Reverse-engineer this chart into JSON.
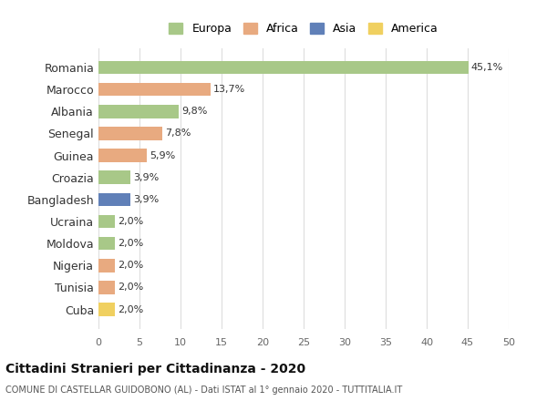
{
  "countries": [
    "Romania",
    "Marocco",
    "Albania",
    "Senegal",
    "Guinea",
    "Croazia",
    "Bangladesh",
    "Ucraina",
    "Moldova",
    "Nigeria",
    "Tunisia",
    "Cuba"
  ],
  "values": [
    45.1,
    13.7,
    9.8,
    7.8,
    5.9,
    3.9,
    3.9,
    2.0,
    2.0,
    2.0,
    2.0,
    2.0
  ],
  "labels": [
    "45,1%",
    "13,7%",
    "9,8%",
    "7,8%",
    "5,9%",
    "3,9%",
    "3,9%",
    "2,0%",
    "2,0%",
    "2,0%",
    "2,0%",
    "2,0%"
  ],
  "continent": [
    "Europa",
    "Africa",
    "Europa",
    "Africa",
    "Africa",
    "Europa",
    "Asia",
    "Europa",
    "Europa",
    "Africa",
    "Africa",
    "America"
  ],
  "colors": {
    "Europa": "#a8c888",
    "Africa": "#e8aa80",
    "Asia": "#6080b8",
    "America": "#f0d060"
  },
  "legend_order": [
    "Europa",
    "Africa",
    "Asia",
    "America"
  ],
  "xlim": [
    0,
    50
  ],
  "xticks": [
    0,
    5,
    10,
    15,
    20,
    25,
    30,
    35,
    40,
    45,
    50
  ],
  "title": "Cittadini Stranieri per Cittadinanza - 2020",
  "subtitle": "COMUNE DI CASTELLAR GUIDOBONO (AL) - Dati ISTAT al 1° gennaio 2020 - TUTTITALIA.IT",
  "background_color": "#ffffff",
  "grid_color": "#dddddd"
}
